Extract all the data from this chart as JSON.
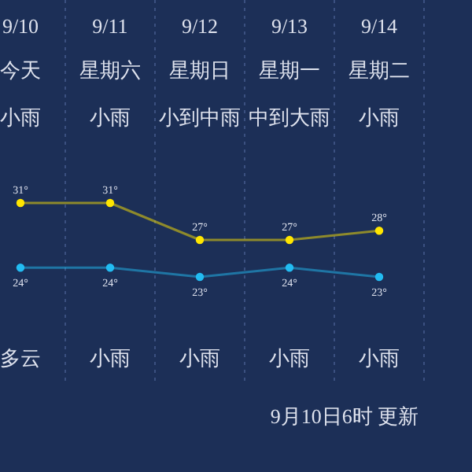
{
  "chart_data": {
    "type": "line",
    "categories": [
      "9/10",
      "9/11",
      "9/12",
      "9/13",
      "9/14"
    ],
    "series": [
      {
        "color": "#ffe600",
        "values": [
          31,
          31,
          27,
          27,
          28
        ],
        "value_labels": [
          "31°",
          "31°",
          "27°",
          "27°",
          "28°"
        ]
      },
      {
        "color": "#22bcf2",
        "values": [
          24,
          24,
          23,
          24,
          23
        ],
        "value_labels": [
          "24°",
          "24°",
          "23°",
          "24°",
          "23°"
        ]
      }
    ],
    "annotations": [
      "今天",
      "星期六",
      "星期日",
      "星期一",
      "星期二",
      "小雨",
      "小雨",
      "小到中雨",
      "中到大雨",
      "小雨",
      "多云",
      "小雨",
      "小雨",
      "小雨",
      "小雨",
      "9月10日6时 更新"
    ],
    "grid": "x",
    "marker": "circle",
    "line_style": "solid"
  }
}
